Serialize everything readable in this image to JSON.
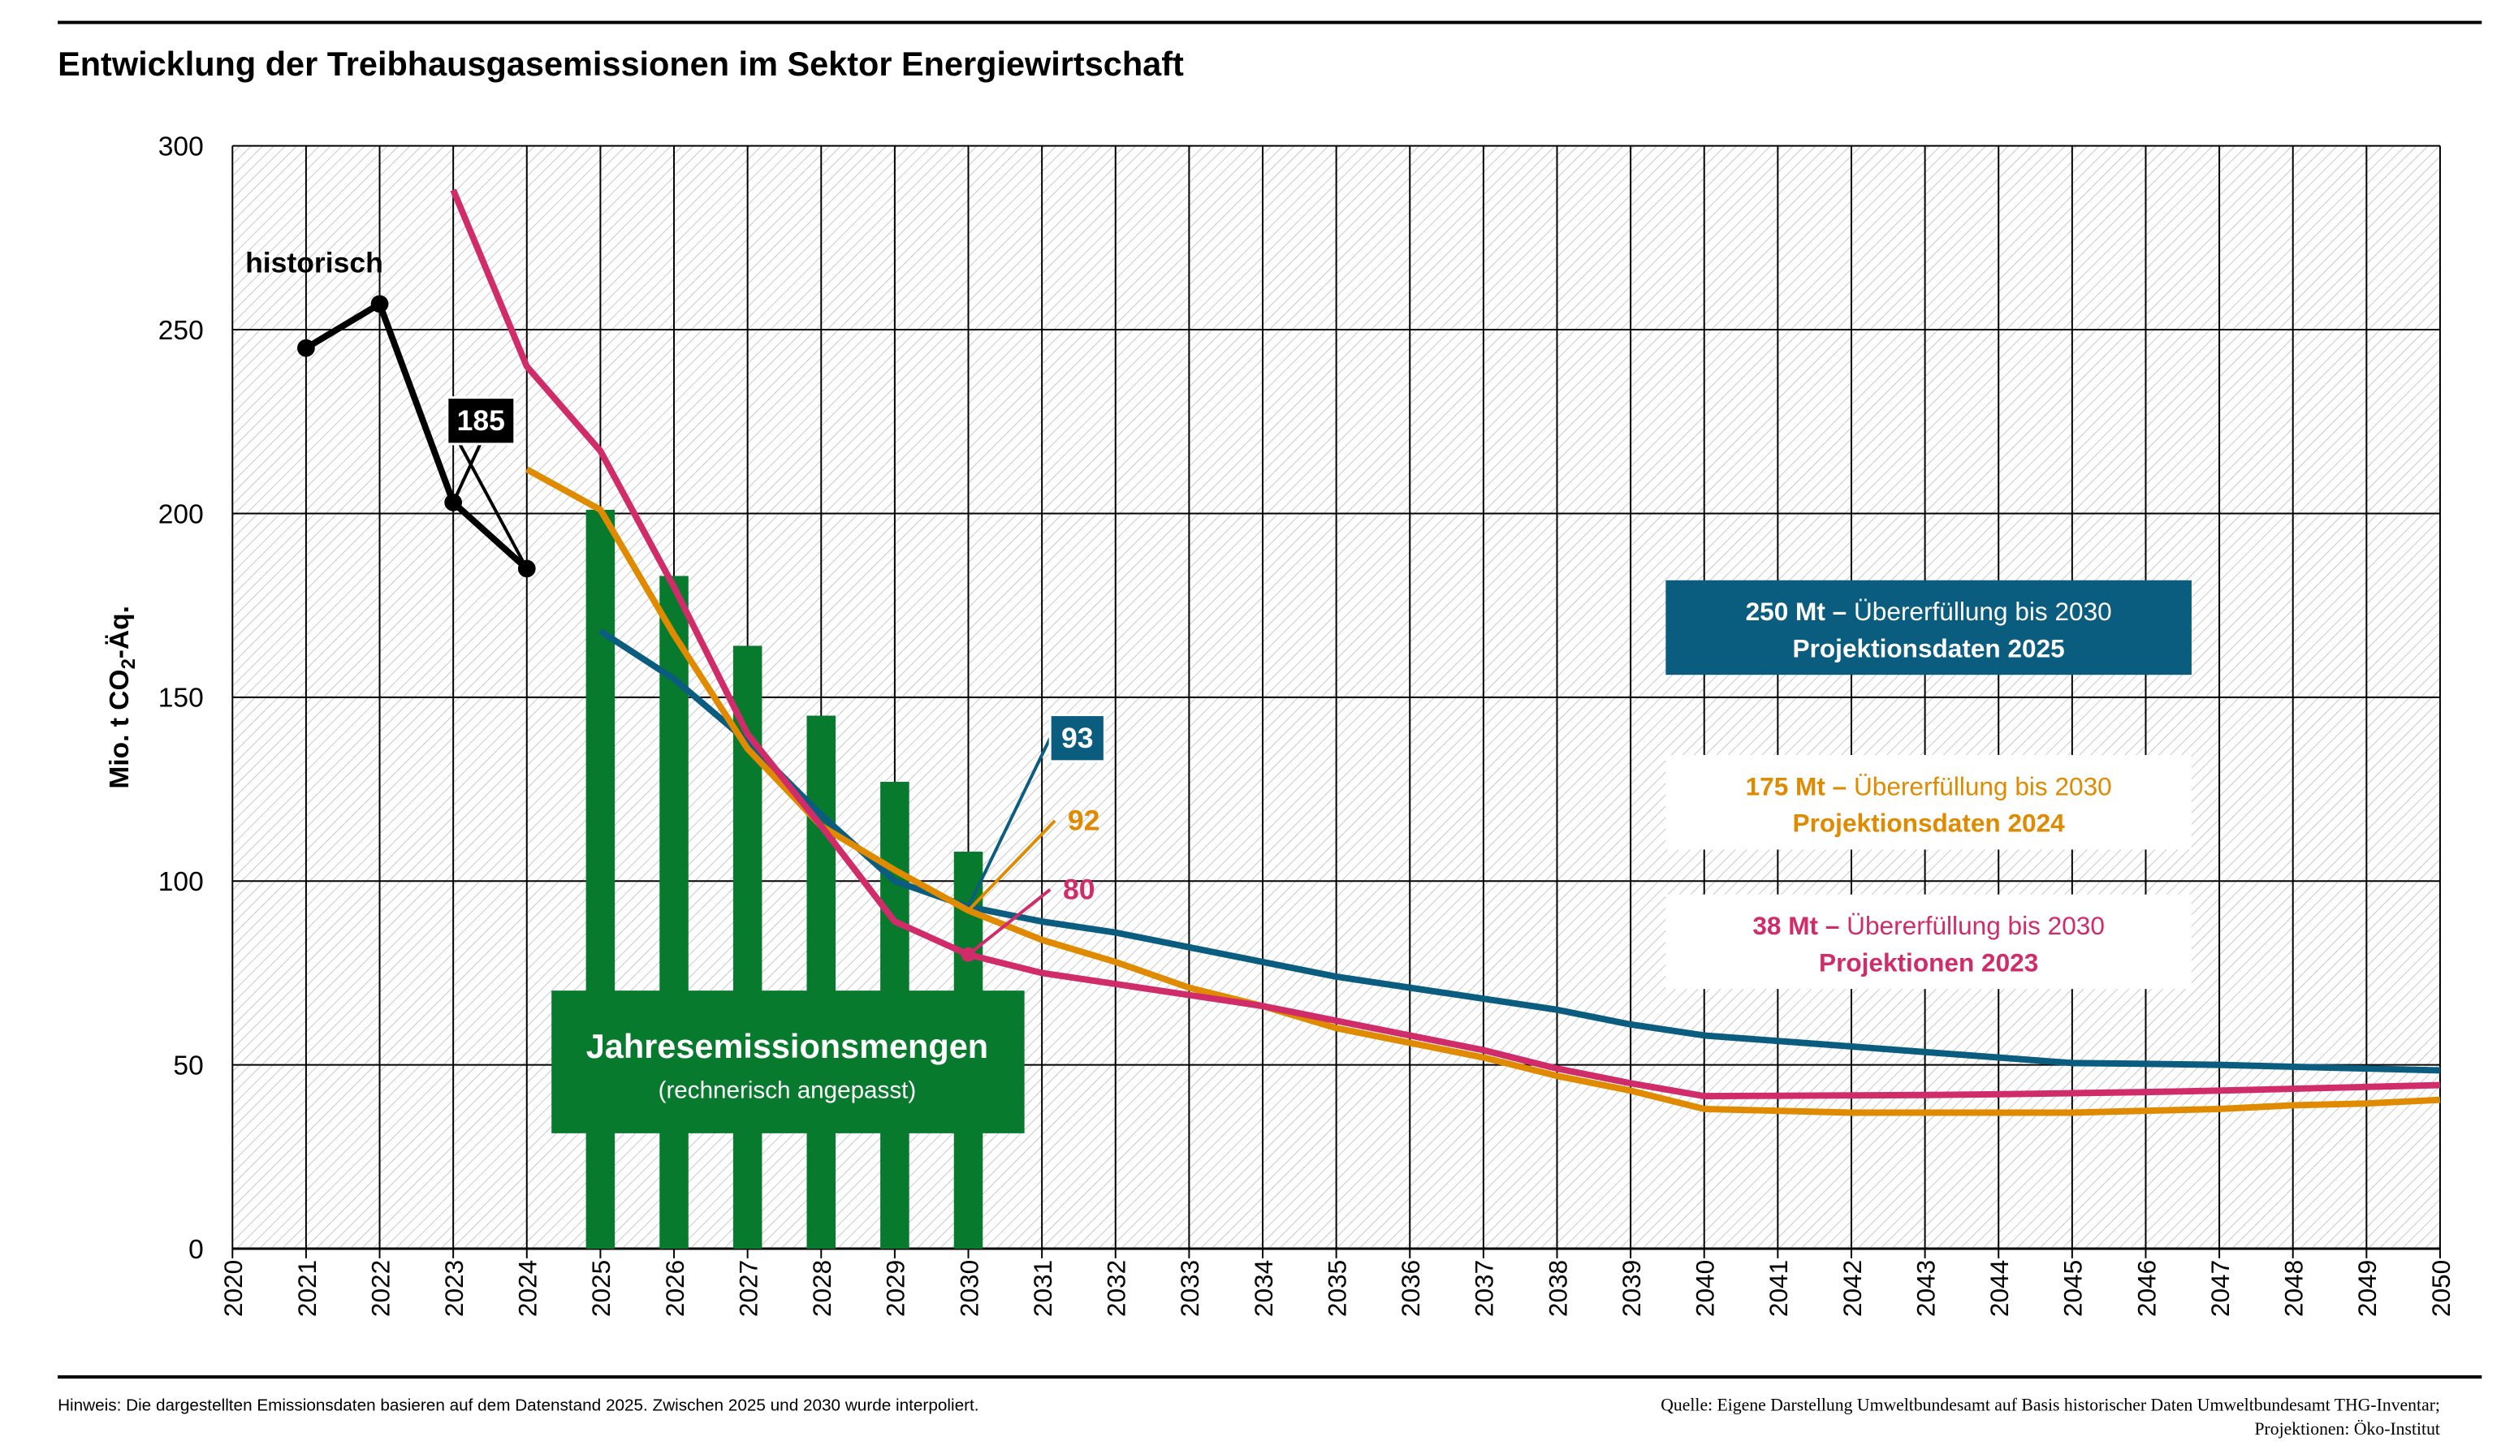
{
  "chart_data": {
    "type": "line",
    "title": "Entwicklung der Treibhausgasemissionen im Sektor Energiewirtschaft",
    "ylabel": {
      "main": "Mio. t CO",
      "sub": "2",
      "suffix": "-Äq."
    },
    "x": [
      2020,
      2021,
      2022,
      2023,
      2024,
      2025,
      2026,
      2027,
      2028,
      2029,
      2030,
      2031,
      2032,
      2033,
      2034,
      2035,
      2036,
      2037,
      2038,
      2039,
      2040,
      2041,
      2042,
      2043,
      2044,
      2045,
      2046,
      2047,
      2048,
      2049,
      2050
    ],
    "xlim": [
      2020,
      2050
    ],
    "ylim": [
      0,
      300
    ],
    "yticks": [
      0,
      50,
      100,
      150,
      200,
      250,
      300
    ],
    "grid": true,
    "bars": {
      "name": "Jahresemissionsmengen",
      "note": "(rechnerisch angepasst)",
      "color": "#087a2d",
      "values": [
        null,
        null,
        null,
        null,
        null,
        201,
        183,
        164,
        145,
        127,
        108,
        null,
        null,
        null,
        null,
        null,
        null,
        null,
        null,
        null,
        null,
        null,
        null,
        null,
        null,
        null,
        null,
        null,
        null,
        null,
        null
      ]
    },
    "series": [
      {
        "name": "historisch",
        "color": "#000000",
        "values": [
          null,
          245,
          257,
          203,
          185,
          null,
          null,
          null,
          null,
          null,
          null,
          null,
          null,
          null,
          null,
          null,
          null,
          null,
          null,
          null,
          null,
          null,
          null,
          null,
          null,
          null,
          null,
          null,
          null,
          null,
          null
        ]
      },
      {
        "name": "Projektionen 2023",
        "amount": "38 Mt –",
        "text": " Übererfüllung bis 2030",
        "color": "#d12c6a",
        "values": [
          null,
          null,
          null,
          288,
          240,
          217,
          180,
          140,
          115,
          89,
          80,
          75,
          72,
          69,
          66,
          62,
          58,
          54,
          49,
          45,
          41.5,
          41.6,
          41.7,
          41.8,
          42,
          42.3,
          42.6,
          43,
          43.5,
          44,
          44.5
        ]
      },
      {
        "name": "Projektionsdaten 2024",
        "amount": "175 Mt –",
        "text": " Übererfüllung bis 2030",
        "color": "#e08a00",
        "values": [
          null,
          null,
          null,
          null,
          212,
          201,
          167,
          136,
          115,
          103,
          92,
          84,
          78,
          71,
          66,
          60,
          56,
          52,
          47,
          43,
          38,
          37.5,
          37,
          37,
          37,
          37,
          37.5,
          38,
          39,
          39.5,
          40.5
        ]
      },
      {
        "name": "Projektionsdaten 2025",
        "amount": "250 Mt –",
        "text": " Übererfüllung bis 2030",
        "color": "#0b5d80",
        "values": [
          null,
          null,
          null,
          null,
          null,
          168,
          155,
          138,
          118,
          100,
          93,
          89,
          86,
          82,
          78,
          74,
          71,
          68,
          65,
          61,
          58,
          56.5,
          55,
          53.5,
          52,
          50.5,
          50.3,
          50,
          49.5,
          49,
          48.5
        ]
      }
    ],
    "footnote": "Hinweis: Die dargestellten Emissionsdaten basieren auf dem Datenstand 2025. Zwischen 2025 und 2030 wurde interpoliert.",
    "source": [
      "Quelle: Eigene Darstellung Umweltbundesamt auf Basis historischer Daten Umweltbundesamt THG-Inventar;",
      "Projektionen: Öko-Institut"
    ]
  }
}
